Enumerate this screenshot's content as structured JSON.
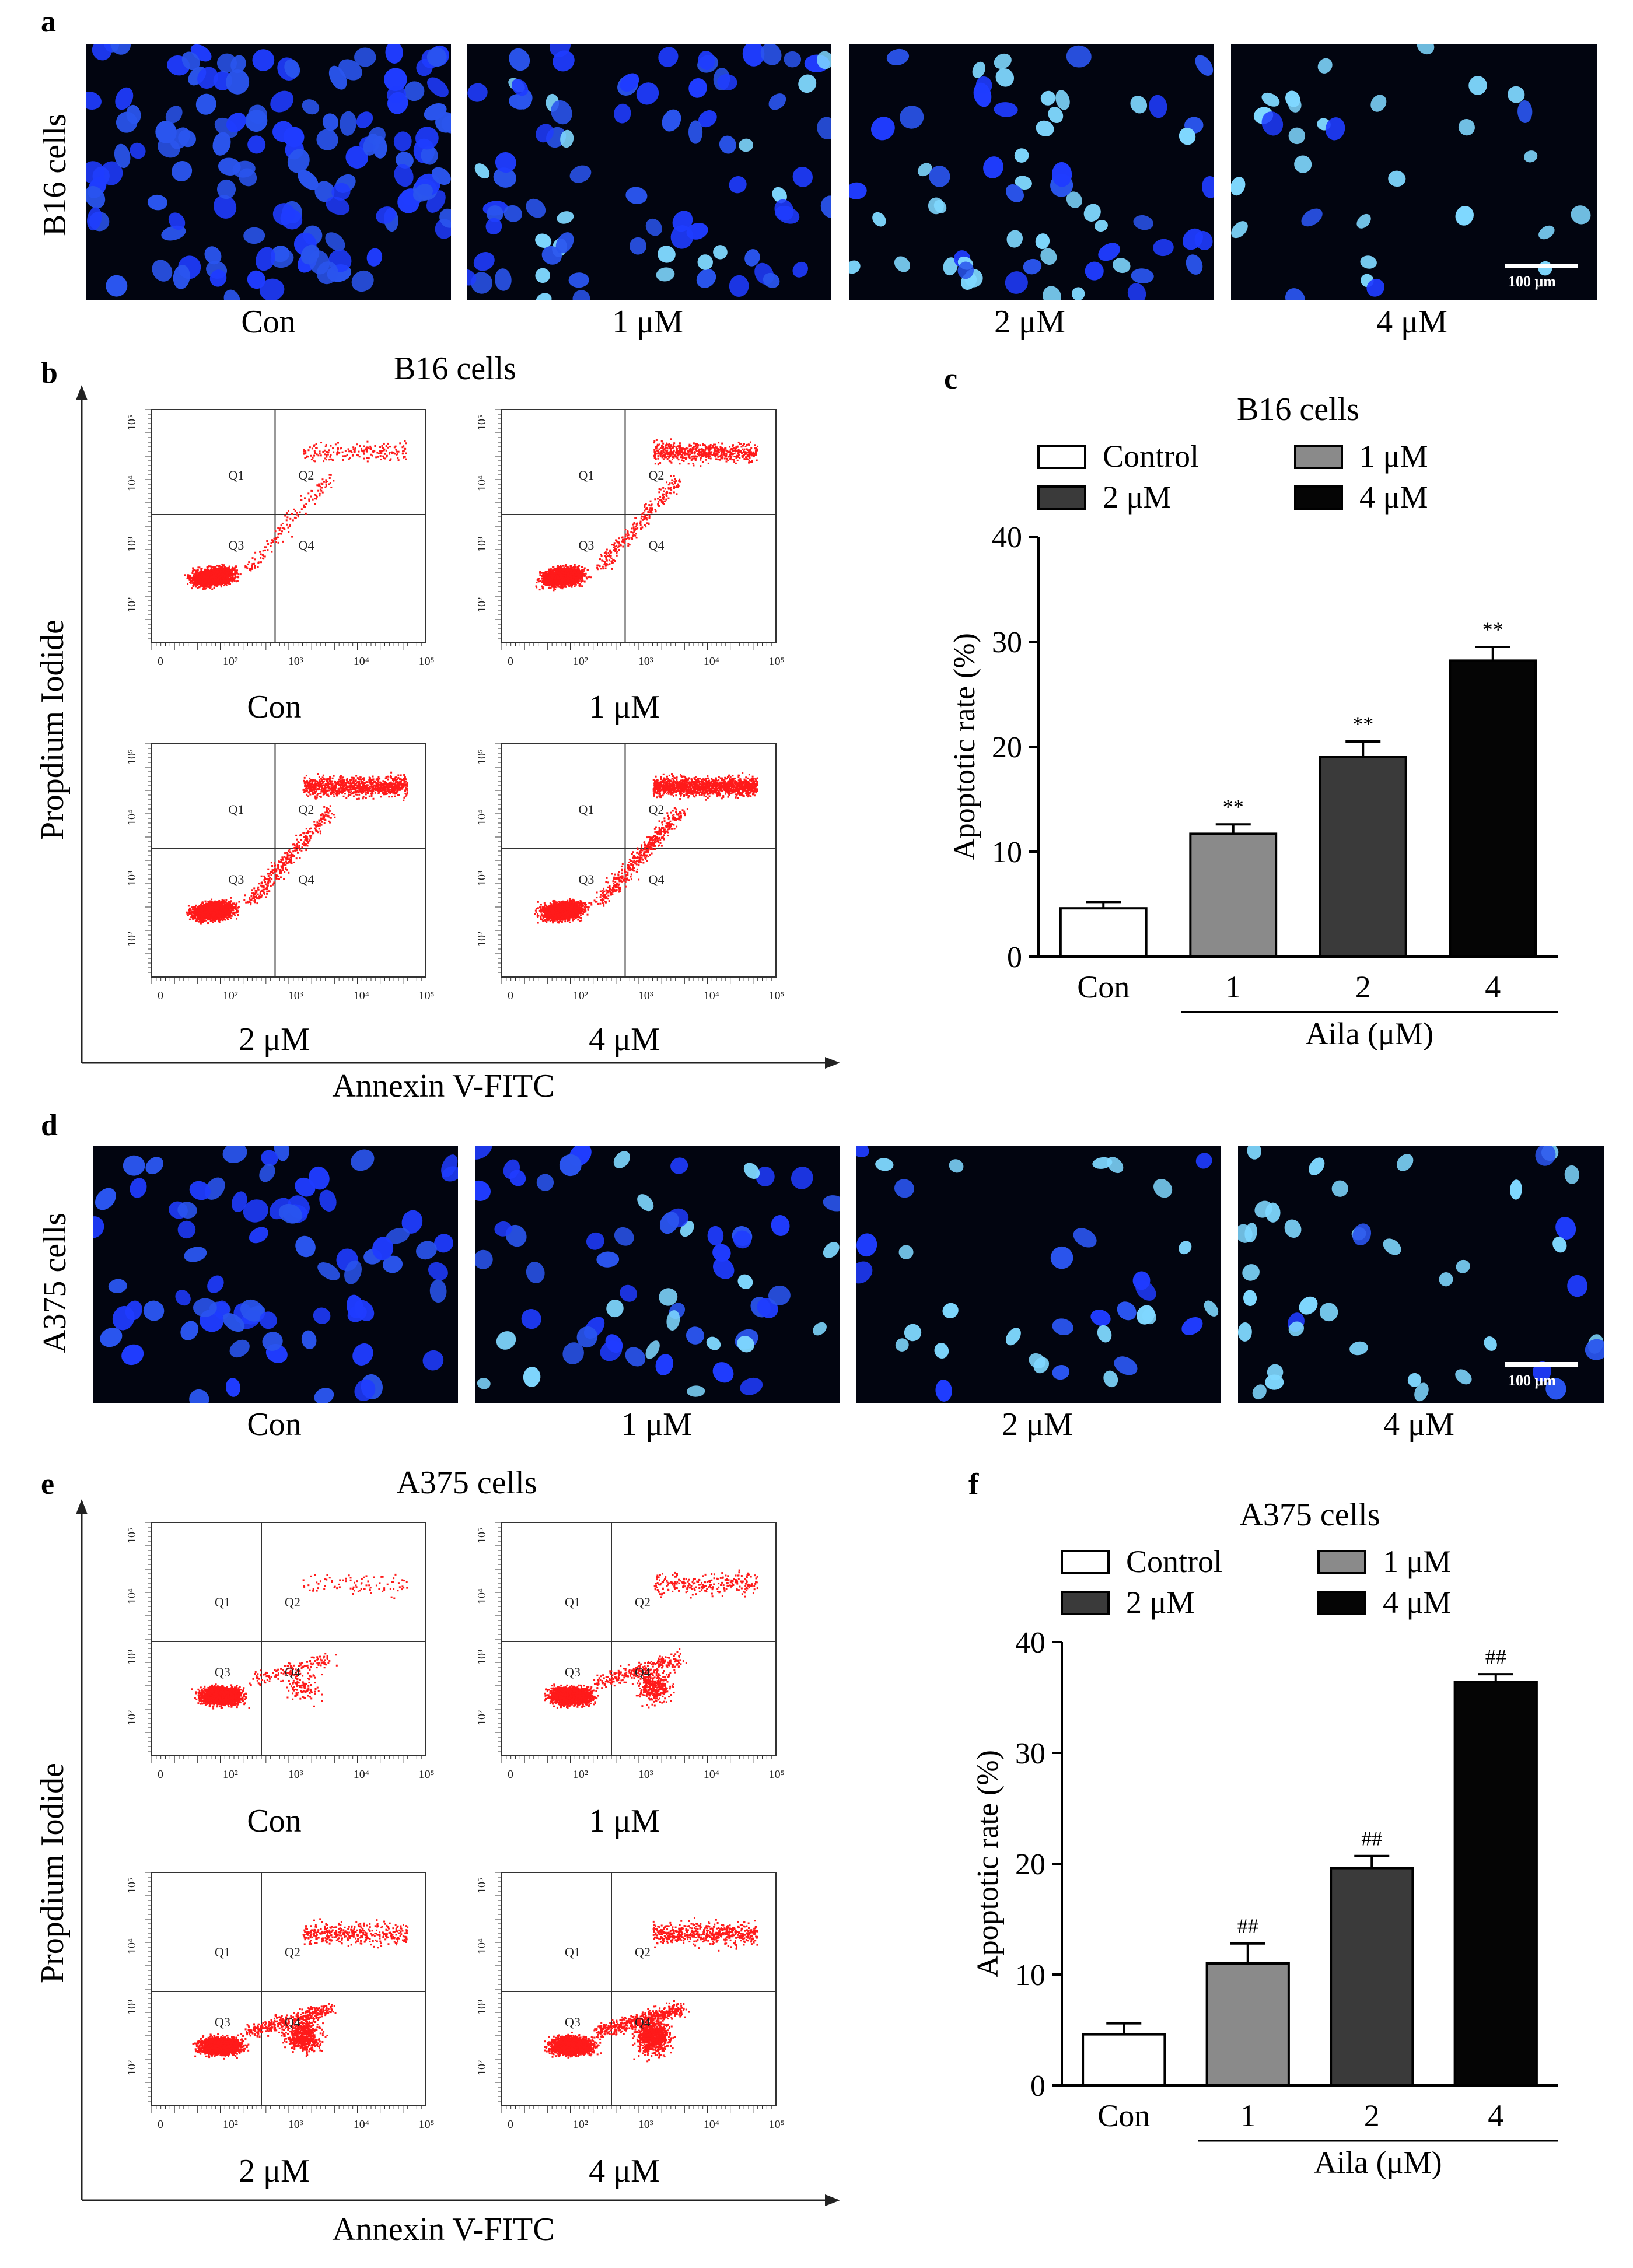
{
  "panels": {
    "a": {
      "label": "a",
      "cell_line": "B16 cells",
      "captions": [
        "Con",
        "1 μM",
        "2 μM",
        "4 μM"
      ],
      "scale": "100 μm"
    },
    "b": {
      "label": "b",
      "title": "B16 cells",
      "y_axis": "Propdium Iodide",
      "x_axis": "Annexin V-FITC",
      "plot_captions": [
        "Con",
        "1 μM",
        "2 μM",
        "4 μM"
      ],
      "quadrants": [
        "Q1",
        "Q2",
        "Q3",
        "Q4"
      ],
      "x_ticks": [
        "0",
        "10²",
        "10³",
        "10⁴",
        "10⁵"
      ],
      "y_ticks": [
        "10²",
        "10³",
        "10⁴",
        "10⁵"
      ]
    },
    "d": {
      "label": "d",
      "cell_line": "A375 cells",
      "captions": [
        "Con",
        "1 μM",
        "2 μM",
        "4 μM"
      ],
      "scale": "100 μm"
    },
    "e": {
      "label": "e",
      "title": "A375 cells",
      "y_axis": "Propdium Iodide",
      "x_axis": "Annexin V-FITC",
      "plot_captions": [
        "Con",
        "1 μM",
        "2 μM",
        "4 μM"
      ],
      "quadrants": [
        "Q1",
        "Q2",
        "Q3",
        "Q4"
      ],
      "x_ticks": [
        "0",
        "10²",
        "10³",
        "10⁴",
        "10⁵"
      ],
      "y_ticks": [
        "10²",
        "10³",
        "10⁴",
        "10⁵"
      ]
    }
  },
  "colors": {
    "control": "#ffffff",
    "dose1": "#8a8a8a",
    "dose2": "#3a3a3a",
    "dose4": "#050505",
    "flow_dots": "#ff1a1a",
    "nuclei": "#1a3cff"
  },
  "chart_data": [
    {
      "panel": "c",
      "label": "c",
      "type": "bar",
      "title": "B16 cells",
      "legend": [
        "Control",
        "1 μM",
        "2 μM",
        "4 μM"
      ],
      "categories": [
        "Con",
        "1",
        "2",
        "4"
      ],
      "values": [
        4.6,
        11.7,
        19.0,
        28.2
      ],
      "errors": [
        0.6,
        0.9,
        1.5,
        1.3
      ],
      "annotations": [
        "",
        "**",
        "**",
        "**"
      ],
      "ylabel": "Apoptotic rate (%)",
      "xlabel": "Aila (μM)",
      "ylim": [
        0,
        40
      ],
      "yticks": [
        0,
        10,
        20,
        30,
        40
      ]
    },
    {
      "panel": "f",
      "label": "f",
      "type": "bar",
      "title": "A375 cells",
      "legend": [
        "Control",
        "1 μM",
        "2 μM",
        "4 μM"
      ],
      "categories": [
        "Con",
        "1",
        "2",
        "4"
      ],
      "values": [
        4.6,
        11.0,
        19.6,
        36.4
      ],
      "errors": [
        1.0,
        1.8,
        1.1,
        0.7
      ],
      "annotations": [
        "",
        "##",
        "##",
        "##"
      ],
      "ylabel": "Apoptotic rate (%)",
      "xlabel": "Aila (μM)",
      "ylim": [
        0,
        40
      ],
      "yticks": [
        0,
        10,
        20,
        30,
        40
      ]
    }
  ]
}
